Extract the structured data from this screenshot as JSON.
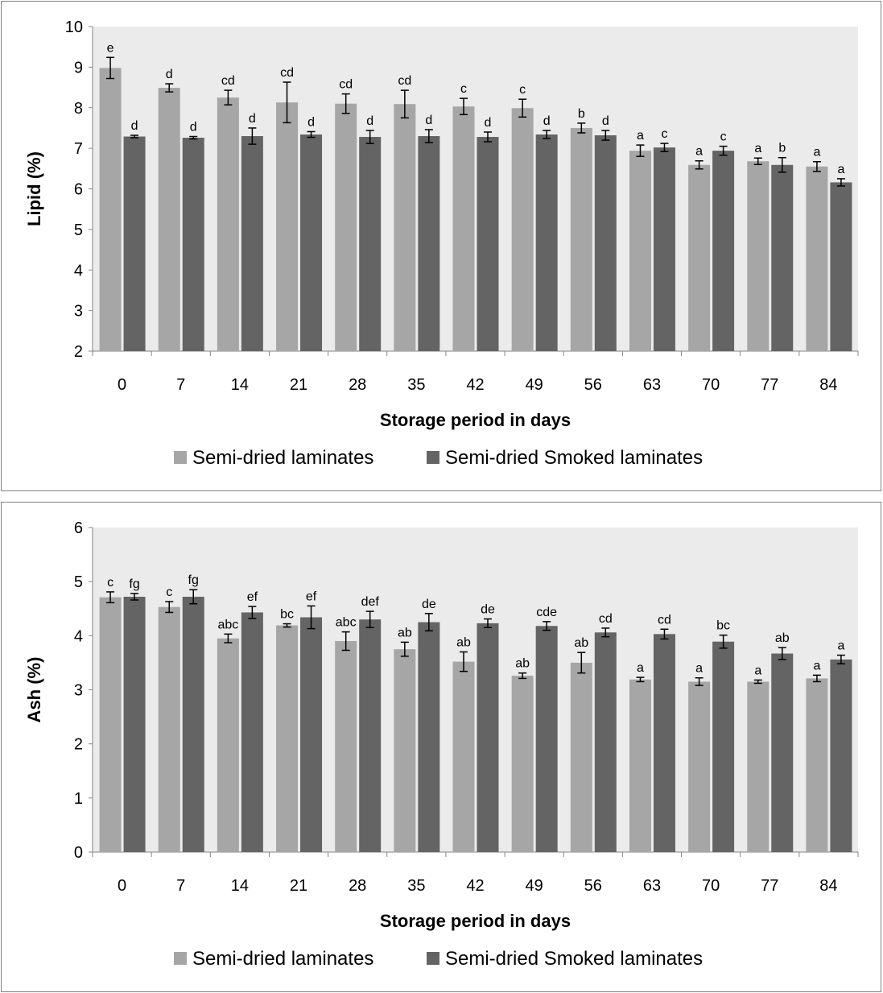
{
  "colors": {
    "series1": "#a6a6a6",
    "series2": "#646464",
    "plot_bg": "#ebebeb",
    "axis": "#868686"
  },
  "chart_data": [
    {
      "type": "bar",
      "xlabel": "Storage period in days",
      "ylabel": "Lipid (%)",
      "ylim": [
        2,
        10
      ],
      "yticks": [
        2,
        3,
        4,
        5,
        6,
        7,
        8,
        9,
        10
      ],
      "grid": false,
      "legend_position": "bottom",
      "categories": [
        "0",
        "7",
        "14",
        "21",
        "28",
        "35",
        "42",
        "49",
        "56",
        "63",
        "70",
        "77",
        "84"
      ],
      "series": [
        {
          "name": "Semi-dried laminates",
          "values": [
            8.98,
            8.49,
            8.25,
            8.13,
            8.1,
            8.09,
            8.03,
            7.99,
            7.5,
            6.94,
            6.59,
            6.68,
            6.55
          ],
          "errors": [
            0.26,
            0.1,
            0.18,
            0.5,
            0.24,
            0.34,
            0.2,
            0.22,
            0.12,
            0.14,
            0.1,
            0.08,
            0.12
          ],
          "letters": [
            "e",
            "d",
            "cd",
            "cd",
            "cd",
            "cd",
            "c",
            "c",
            "b",
            "a",
            "a",
            "a",
            "a"
          ]
        },
        {
          "name": "Semi-dried Smoked laminates",
          "values": [
            7.29,
            7.26,
            7.3,
            7.34,
            7.28,
            7.3,
            7.28,
            7.34,
            7.32,
            7.02,
            6.94,
            6.59,
            6.16
          ],
          "errors": [
            0.03,
            0.03,
            0.2,
            0.07,
            0.16,
            0.16,
            0.12,
            0.1,
            0.12,
            0.1,
            0.11,
            0.18,
            0.09
          ],
          "letters": [
            "d",
            "d",
            "d",
            "d",
            "d",
            "d",
            "d",
            "d",
            "d",
            "c",
            "c",
            "b",
            "a"
          ]
        }
      ]
    },
    {
      "type": "bar",
      "xlabel": "Storage period in days",
      "ylabel": "Ash (%)",
      "ylim": [
        0,
        6
      ],
      "yticks": [
        0,
        1,
        2,
        3,
        4,
        5,
        6
      ],
      "grid": false,
      "legend_position": "bottom",
      "categories": [
        "0",
        "7",
        "14",
        "21",
        "28",
        "35",
        "42",
        "49",
        "56",
        "63",
        "70",
        "77",
        "84"
      ],
      "series": [
        {
          "name": "Semi-dried laminates",
          "values": [
            4.71,
            4.53,
            3.95,
            4.19,
            3.9,
            3.75,
            3.52,
            3.26,
            3.5,
            3.19,
            3.15,
            3.15,
            3.21
          ],
          "errors": [
            0.1,
            0.1,
            0.08,
            0.03,
            0.17,
            0.13,
            0.18,
            0.05,
            0.19,
            0.04,
            0.07,
            0.03,
            0.06
          ],
          "letters": [
            "c",
            "c",
            "abc",
            "bc",
            "abc",
            "ab",
            "ab",
            "ab",
            "ab",
            "a",
            "a",
            "a",
            "a"
          ]
        },
        {
          "name": "Semi-dried Smoked laminates",
          "values": [
            4.72,
            4.72,
            4.43,
            4.34,
            4.3,
            4.25,
            4.23,
            4.18,
            4.06,
            4.03,
            3.89,
            3.67,
            3.56
          ],
          "errors": [
            0.06,
            0.13,
            0.11,
            0.21,
            0.15,
            0.16,
            0.08,
            0.08,
            0.08,
            0.09,
            0.12,
            0.11,
            0.08
          ],
          "letters": [
            "fg",
            "fg",
            "ef",
            "ef",
            "def",
            "de",
            "de",
            "cde",
            "cd",
            "cd",
            "bc",
            "ab",
            "a"
          ]
        }
      ]
    }
  ]
}
